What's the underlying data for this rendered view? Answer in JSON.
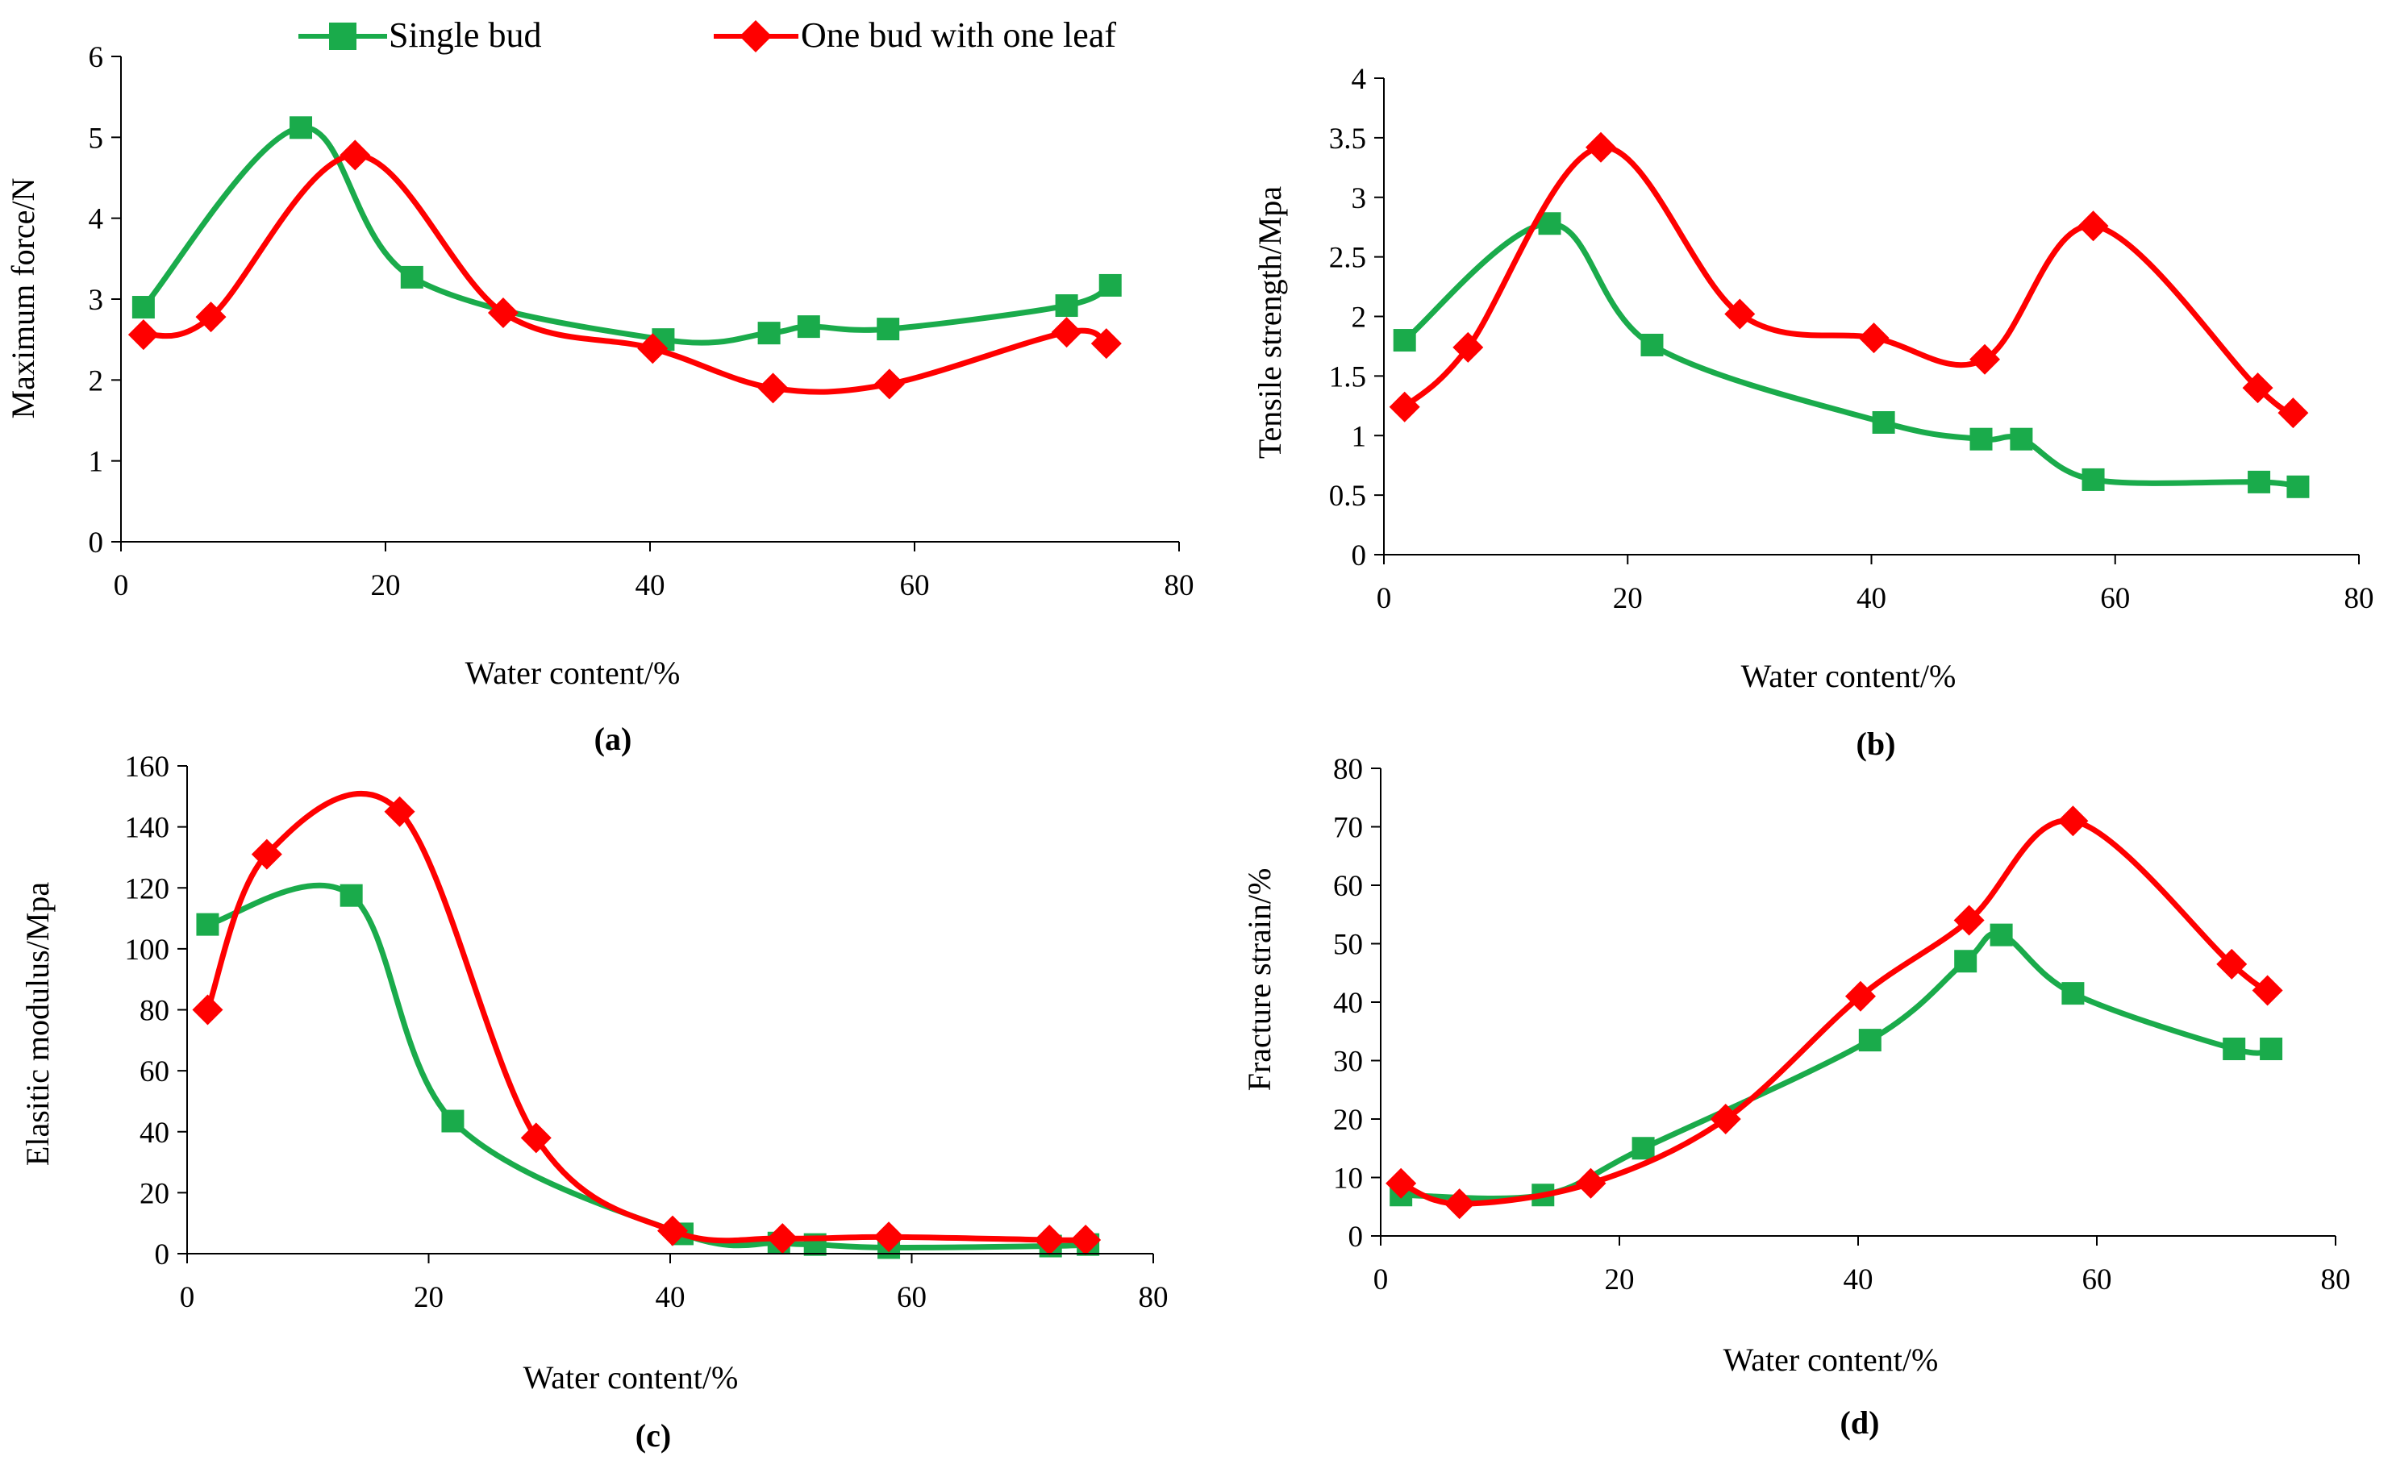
{
  "figure": {
    "legend": [
      {
        "name": "Single bud",
        "color": "#1aab4b",
        "marker": "square"
      },
      {
        "name": "One bud with one leaf",
        "color": "#ff0000",
        "marker": "diamond"
      }
    ]
  },
  "chart_data": [
    {
      "type": "line",
      "panel_label": "(a)",
      "title": "",
      "xlabel": "Water content/%",
      "ylabel": "Maximum force/N",
      "xlim": [
        0,
        80
      ],
      "ylim": [
        0,
        6
      ],
      "xticks": [
        "0",
        "20",
        "40",
        "60",
        "80"
      ],
      "yticks": [
        "0",
        "1",
        "2",
        "3",
        "4",
        "5",
        "6"
      ],
      "series": [
        {
          "name": "Single bud",
          "color": "#1aab4b",
          "marker": "square",
          "x": [
            1.7,
            13.6,
            22.0,
            41.0,
            49.0,
            52.0,
            58.0,
            71.5,
            74.8
          ],
          "y": [
            2.9,
            5.12,
            3.27,
            2.5,
            2.58,
            2.66,
            2.63,
            2.92,
            3.17
          ]
        },
        {
          "name": "One bud with one leaf",
          "color": "#ff0000",
          "marker": "diamond",
          "x": [
            1.7,
            6.8,
            17.7,
            28.9,
            40.2,
            49.3,
            58.1,
            71.5,
            74.5
          ],
          "y": [
            2.56,
            2.78,
            4.78,
            2.83,
            2.39,
            1.9,
            1.95,
            2.59,
            2.45
          ]
        }
      ]
    },
    {
      "type": "line",
      "panel_label": "(b)",
      "title": "",
      "xlabel": "Water content/%",
      "ylabel": "Tensile strength/Mpa",
      "xlim": [
        0,
        80
      ],
      "ylim": [
        0,
        4
      ],
      "xticks": [
        "0",
        "20",
        "40",
        "60",
        "80"
      ],
      "yticks": [
        "0",
        "0.5",
        "1",
        "1.5",
        "2",
        "2.5",
        "3",
        "3.5",
        "4"
      ],
      "series": [
        {
          "name": "Single bud",
          "color": "#1aab4b",
          "marker": "square",
          "x": [
            1.7,
            13.6,
            22.0,
            41.0,
            49.0,
            52.3,
            58.2,
            71.8,
            75.0
          ],
          "y": [
            1.8,
            2.78,
            1.76,
            1.11,
            0.97,
            0.97,
            0.63,
            0.61,
            0.57
          ]
        },
        {
          "name": "One bud with one leaf",
          "color": "#ff0000",
          "marker": "diamond",
          "x": [
            1.7,
            6.9,
            17.8,
            29.2,
            40.2,
            49.3,
            58.2,
            71.7,
            74.6
          ],
          "y": [
            1.24,
            1.74,
            3.42,
            2.02,
            1.82,
            1.64,
            2.76,
            1.4,
            1.19
          ]
        }
      ]
    },
    {
      "type": "line",
      "panel_label": "(c)",
      "title": "",
      "xlabel": "Water content/%",
      "ylabel": "Elasitic modulus/Mpa",
      "xlim": [
        0,
        80
      ],
      "ylim": [
        0,
        160
      ],
      "xticks": [
        "0",
        "20",
        "40",
        "60",
        "80"
      ],
      "yticks": [
        "0",
        "20",
        "40",
        "60",
        "80",
        "100",
        "120",
        "140",
        "160"
      ],
      "series": [
        {
          "name": "Single bud",
          "color": "#1aab4b",
          "marker": "square",
          "x": [
            1.7,
            13.6,
            22.0,
            41.0,
            49.0,
            52.0,
            58.1,
            71.5,
            74.6
          ],
          "y": [
            108,
            117.5,
            43.5,
            6.5,
            3.5,
            3.0,
            2.0,
            2.5,
            3.0
          ]
        },
        {
          "name": "One bud with one leaf",
          "color": "#ff0000",
          "marker": "diamond",
          "x": [
            1.7,
            6.6,
            17.6,
            28.9,
            40.2,
            49.3,
            58.1,
            71.4,
            74.4
          ],
          "y": [
            80,
            131,
            145,
            38,
            7.5,
            5.0,
            5.5,
            4.5,
            4.5
          ]
        }
      ]
    },
    {
      "type": "line",
      "panel_label": "(d)",
      "title": "",
      "xlabel": "Water content/%",
      "ylabel": "Fracture strain/%",
      "xlim": [
        0,
        80
      ],
      "ylim": [
        0,
        80
      ],
      "xticks": [
        "0",
        "20",
        "40",
        "60",
        "80"
      ],
      "yticks": [
        "0",
        "10",
        "20",
        "30",
        "40",
        "50",
        "60",
        "70",
        "80"
      ],
      "series": [
        {
          "name": "Single bud",
          "color": "#1aab4b",
          "marker": "square",
          "x": [
            1.7,
            13.6,
            22.0,
            41.0,
            49.0,
            52.0,
            58.0,
            71.5,
            74.6
          ],
          "y": [
            7.0,
            7.0,
            15.0,
            33.5,
            47.0,
            51.5,
            41.5,
            32.0,
            32.0
          ]
        },
        {
          "name": "One bud with one leaf",
          "color": "#ff0000",
          "marker": "diamond",
          "x": [
            1.7,
            6.6,
            17.6,
            28.9,
            40.2,
            49.3,
            58.0,
            71.3,
            74.3
          ],
          "y": [
            9.0,
            5.5,
            9.0,
            20.0,
            41.0,
            54.0,
            71.0,
            46.5,
            42.0
          ]
        }
      ]
    }
  ]
}
